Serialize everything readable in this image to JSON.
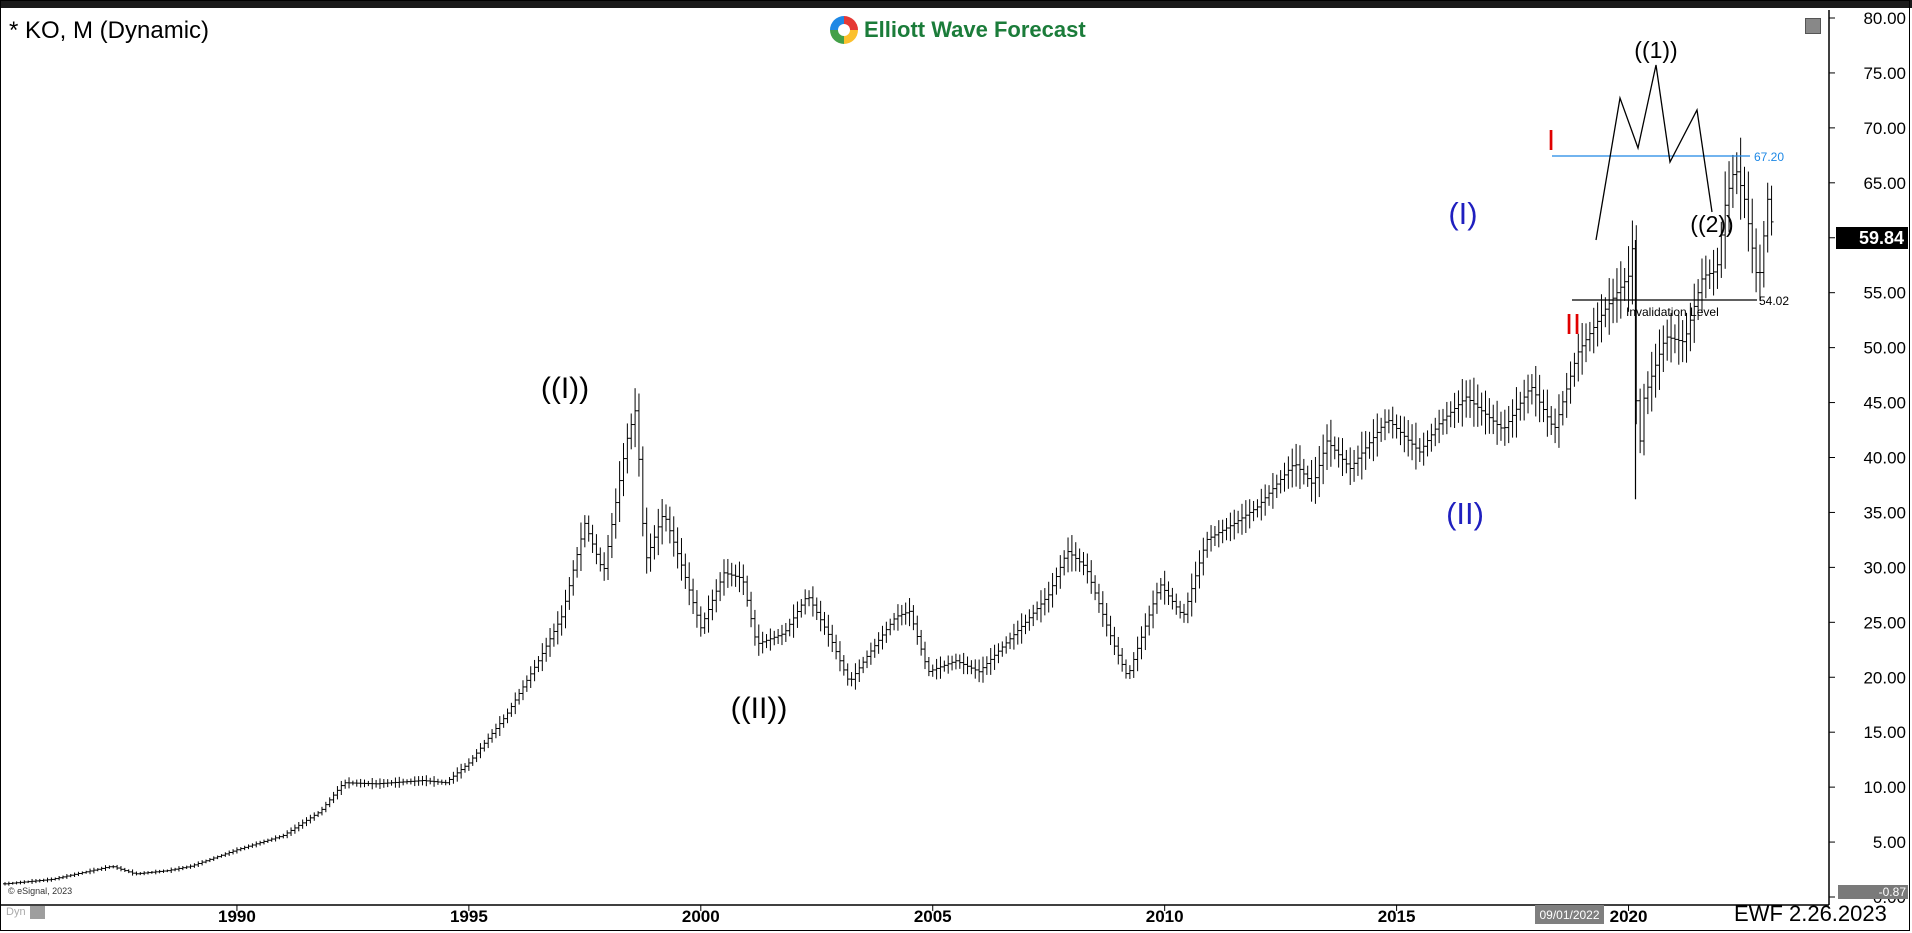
{
  "header": {
    "title": "* KO, M (Dynamic)",
    "logo_text": "Elliott Wave Forecast",
    "last_price": "59.84",
    "cursor_date": "09/01/2022",
    "footer_label": "EWF 2.26.2023",
    "copyright": "© eSignal, 2023",
    "dyn_label": "Dyn",
    "bottom_axis_value": "-0.87"
  },
  "colors": {
    "bars": "#000000",
    "wave_blue": "#1f1fbf",
    "wave_red": "#e00000",
    "fib_line": "#1e88e5",
    "background": "#ffffff"
  },
  "chart_data": {
    "type": "ohlc_bar",
    "interval": "monthly",
    "x_ticks": [
      "1990",
      "1995",
      "2000",
      "2005",
      "2010",
      "2015",
      "2020"
    ],
    "x_tick_years": [
      1990,
      1995,
      2000,
      2005,
      2010,
      2015,
      2020
    ],
    "y_ticks": [
      "80.00",
      "75.00",
      "70.00",
      "65.00",
      "60.00",
      "55.00",
      "50.00",
      "45.00",
      "40.00",
      "35.00",
      "30.00",
      "25.00",
      "20.00",
      "15.00",
      "10.00",
      "5.00",
      "0.00"
    ],
    "ylim": [
      0,
      80
    ],
    "xlim": [
      1985,
      2024.3
    ],
    "price_path": [
      [
        1985.0,
        1.2
      ],
      [
        1986.0,
        1.6
      ],
      [
        1987.3,
        2.8
      ],
      [
        1987.8,
        2.1
      ],
      [
        1988.5,
        2.4
      ],
      [
        1989.0,
        2.8
      ],
      [
        1990.0,
        4.3
      ],
      [
        1991.0,
        5.6
      ],
      [
        1991.8,
        7.8
      ],
      [
        1992.3,
        10.4
      ],
      [
        1993.0,
        10.3
      ],
      [
        1994.0,
        10.6
      ],
      [
        1994.5,
        10.4
      ],
      [
        1995.0,
        12.2
      ],
      [
        1995.8,
        16.5
      ],
      [
        1996.5,
        21.5
      ],
      [
        1997.0,
        25.5
      ],
      [
        1997.5,
        34.0
      ],
      [
        1997.9,
        29.5
      ],
      [
        1998.4,
        41.5
      ],
      [
        1998.6,
        44.5
      ],
      [
        1998.8,
        30.5
      ],
      [
        1999.2,
        35.0
      ],
      [
        1999.6,
        30.0
      ],
      [
        2000.0,
        24.5
      ],
      [
        2000.5,
        29.5
      ],
      [
        2000.9,
        29.0
      ],
      [
        2001.2,
        23.0
      ],
      [
        2001.8,
        24.0
      ],
      [
        2002.3,
        27.5
      ],
      [
        2002.8,
        23.5
      ],
      [
        2003.2,
        19.5
      ],
      [
        2003.6,
        22.0
      ],
      [
        2004.2,
        25.5
      ],
      [
        2004.5,
        26.0
      ],
      [
        2004.9,
        20.5
      ],
      [
        2005.5,
        21.5
      ],
      [
        2006.0,
        20.5
      ],
      [
        2007.0,
        25.0
      ],
      [
        2007.5,
        27.5
      ],
      [
        2007.9,
        31.5
      ],
      [
        2008.3,
        30.0
      ],
      [
        2008.9,
        23.0
      ],
      [
        2009.2,
        20.0
      ],
      [
        2009.9,
        28.5
      ],
      [
        2010.4,
        25.5
      ],
      [
        2010.9,
        32.5
      ],
      [
        2011.5,
        34.0
      ],
      [
        2012.0,
        35.5
      ],
      [
        2012.8,
        39.5
      ],
      [
        2013.2,
        37.5
      ],
      [
        2013.5,
        41.5
      ],
      [
        2014.0,
        39.0
      ],
      [
        2014.8,
        43.5
      ],
      [
        2015.5,
        40.5
      ],
      [
        2015.9,
        43.0
      ],
      [
        2016.5,
        45.5
      ],
      [
        2017.3,
        42.5
      ],
      [
        2017.9,
        46.5
      ],
      [
        2018.4,
        42.5
      ],
      [
        2018.9,
        49.5
      ],
      [
        2019.5,
        53.5
      ],
      [
        2020.0,
        56.5
      ],
      [
        2020.1,
        59.5
      ],
      [
        2020.2,
        38.0
      ],
      [
        2020.3,
        45.0
      ],
      [
        2020.8,
        51.0
      ],
      [
        2021.2,
        50.5
      ],
      [
        2021.6,
        56.5
      ],
      [
        2021.9,
        57.0
      ],
      [
        2022.1,
        63.5
      ],
      [
        2022.3,
        66.5
      ],
      [
        2022.5,
        63.5
      ],
      [
        2022.8,
        55.5
      ],
      [
        2023.0,
        63.5
      ],
      [
        2023.15,
        59.8
      ]
    ],
    "projection": [
      [
        2023.2,
        59.3
      ],
      [
        2023.8,
        72.8
      ],
      [
        2024.1,
        68.2
      ],
      [
        2024.5,
        75.5
      ],
      [
        2024.8,
        66.8
      ],
      [
        2025.5,
        71.5
      ],
      [
        2025.9,
        62.0
      ]
    ],
    "levels": [
      {
        "label": "67.20",
        "value": 67.2,
        "x_from": 2022.3,
        "x_to": 2026.8
      },
      {
        "label": "54.02",
        "value": 54.02,
        "x_from": 2022.8,
        "x_to": 2026.8,
        "caption": "Invalidation Level"
      }
    ],
    "wave_labels": [
      {
        "text": "((I))",
        "x": 1998.6,
        "y": 44.6,
        "color": "black",
        "pos": "above"
      },
      {
        "text": "((II))",
        "x": 2003.3,
        "y": 19.0,
        "color": "black",
        "pos": "below"
      },
      {
        "text": "(I)",
        "x": 2020.1,
        "y": 59.6,
        "color": "blue",
        "pos": "above"
      },
      {
        "text": "(II)",
        "x": 2020.2,
        "y": 37.0,
        "color": "blue",
        "pos": "below"
      },
      {
        "text": "I",
        "x": 2022.3,
        "y": 67.3,
        "color": "red",
        "pos": "above"
      },
      {
        "text": "II",
        "x": 2022.8,
        "y": 54.1,
        "color": "red",
        "pos": "below"
      },
      {
        "text": "((1))",
        "x": 2024.5,
        "y": 75.5,
        "color": "black",
        "pos": "above"
      },
      {
        "text": "((2))",
        "x": 2025.9,
        "y": 62.0,
        "color": "black",
        "pos": "below"
      }
    ]
  }
}
